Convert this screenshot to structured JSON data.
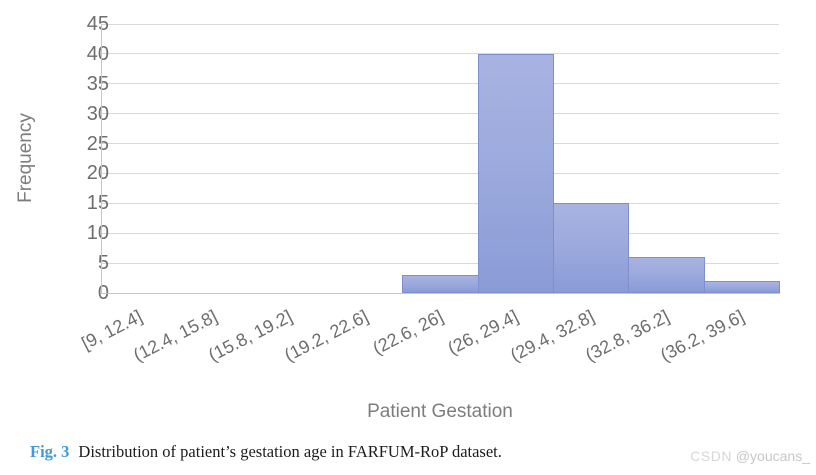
{
  "chart_data": {
    "type": "bar",
    "subtype": "histogram",
    "title": "",
    "xlabel": "Patient Gestation",
    "ylabel": "Frequency",
    "categories": [
      "[9, 12.4]",
      "(12.4, 15.8]",
      "(15.8, 19.2]",
      "(19.2, 22.6]",
      "(22.6, 26]",
      "(26, 29.4]",
      "(29.4, 32.8]",
      "(32.8, 36.2]",
      "(36.2, 39.6]"
    ],
    "values": [
      0,
      0,
      0,
      0,
      3,
      40,
      15,
      6,
      2
    ],
    "ylim": [
      0,
      45
    ],
    "ytick_step": 5,
    "grid": "horizontal",
    "legend_position": "none",
    "bar_fill_top": "#a9b3e2",
    "bar_fill_bottom": "#8a9bd6",
    "bar_border_color": "#7e8ecf",
    "gridline_color": "#d9d9d9",
    "axis_line_color": "#c6c6c6",
    "tick_label_color": "#6e6e6e",
    "axis_title_color": "#7d7d7d"
  },
  "caption": {
    "fig_label": "Fig. 3",
    "fig_label_color": "#3f9ad6",
    "text": "Distribution of patient’s gestation age in FARFUM-RoP dataset."
  },
  "watermark": {
    "brand": "CSDN",
    "handle": "@youcans_"
  }
}
